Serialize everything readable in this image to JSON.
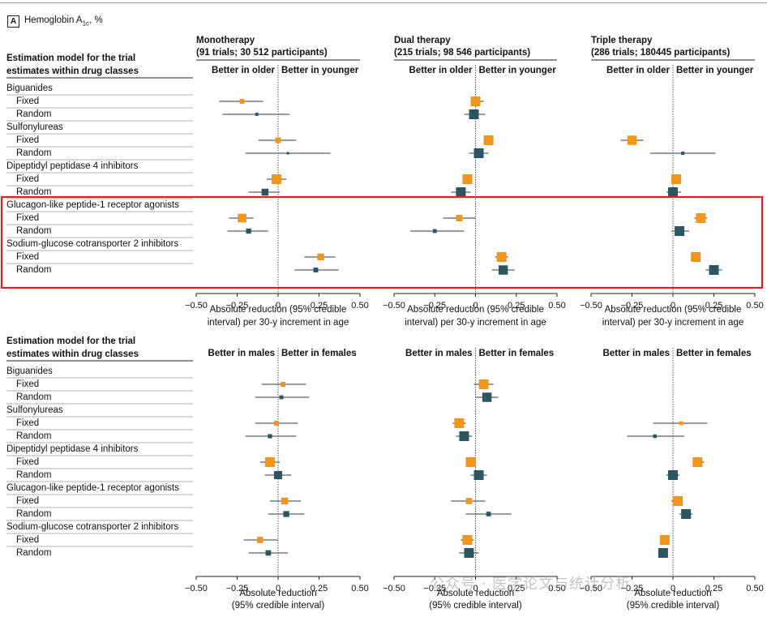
{
  "figure": {
    "panel_letter": "A",
    "panel_title": "Hemoglobin A",
    "panel_title_sub": "1c",
    "panel_title_suffix": ", %",
    "left_header_line1": "Estimation model for the trial",
    "left_header_line2": "estimates within drug classes",
    "watermark": "公众号 · 医学论文与统计分析",
    "colors": {
      "fixed": "#F0951E",
      "random": "#2B5560",
      "highlight": "#E8201C",
      "ci_line": "#2b3b45",
      "divider": "#9a9a9a"
    }
  },
  "chart_data": [
    {
      "type": "forest",
      "title": "Monotherapy",
      "subtitle": "(91 trials; 30 512 participants)",
      "label_left": "Better in older",
      "label_right": "Better in younger",
      "xlabel_line1": "Absolute reduction (95% credible",
      "xlabel_line2": "interval) per 30-y increment in age",
      "xlim": [
        -0.5,
        0.5
      ],
      "xticks": [
        "-0.50",
        "-0.25",
        "0",
        "0.25",
        "0.50"
      ],
      "groups": [
        {
          "name": "Biguanides",
          "fixed": {
            "est": -0.22,
            "lo": -0.36,
            "hi": -0.09
          },
          "random": {
            "est": -0.13,
            "lo": -0.34,
            "hi": 0.07
          }
        },
        {
          "name": "Sulfonylureas",
          "fixed": {
            "est": 0.0,
            "lo": -0.12,
            "hi": 0.11
          },
          "random": {
            "est": 0.06,
            "lo": -0.2,
            "hi": 0.32
          }
        },
        {
          "name": "Dipeptidyl peptidase 4 inhibitors",
          "fixed": {
            "est": -0.01,
            "lo": -0.07,
            "hi": 0.05
          },
          "random": {
            "est": -0.08,
            "lo": -0.18,
            "hi": 0.01
          }
        },
        {
          "name": "Glucagon-like peptide-1 receptor agonists",
          "fixed": {
            "est": -0.22,
            "lo": -0.3,
            "hi": -0.15
          },
          "random": {
            "est": -0.18,
            "lo": -0.31,
            "hi": -0.06
          }
        },
        {
          "name": "Sodium-glucose cotransporter 2 inhibitors",
          "fixed": {
            "est": 0.26,
            "lo": 0.16,
            "hi": 0.35
          },
          "random": {
            "est": 0.23,
            "lo": 0.1,
            "hi": 0.37
          }
        }
      ]
    },
    {
      "type": "forest",
      "title": "Dual therapy",
      "subtitle": "(215 trials; 98 546 participants)",
      "label_left": "Better in older",
      "label_right": "Better in younger",
      "xlabel_line1": "Absolute reduction (95% credible",
      "xlabel_line2": "interval) per 30-y increment in age",
      "xlim": [
        -0.5,
        0.5
      ],
      "xticks": [
        "-0.50",
        "-0.25",
        "0",
        "0.25",
        "0.50"
      ],
      "groups": [
        {
          "name": "Biguanides",
          "fixed": {
            "est": 0.0,
            "lo": -0.03,
            "hi": 0.05
          },
          "random": {
            "est": -0.01,
            "lo": -0.07,
            "hi": 0.06
          }
        },
        {
          "name": "Sulfonylureas",
          "fixed": {
            "est": 0.08,
            "lo": 0.05,
            "hi": 0.11
          },
          "random": {
            "est": 0.02,
            "lo": -0.04,
            "hi": 0.08
          }
        },
        {
          "name": "Dipeptidyl peptidase 4 inhibitors",
          "fixed": {
            "est": -0.05,
            "lo": -0.08,
            "hi": -0.02
          },
          "random": {
            "est": -0.09,
            "lo": -0.15,
            "hi": -0.03
          }
        },
        {
          "name": "Glucagon-like peptide-1 receptor agonists",
          "fixed": {
            "est": -0.1,
            "lo": -0.2,
            "hi": 0.0
          },
          "random": {
            "est": -0.25,
            "lo": -0.4,
            "hi": -0.07
          }
        },
        {
          "name": "Sodium-glucose cotransporter 2 inhibitors",
          "fixed": {
            "est": 0.16,
            "lo": 0.12,
            "hi": 0.2
          },
          "random": {
            "est": 0.17,
            "lo": 0.1,
            "hi": 0.24
          }
        }
      ]
    },
    {
      "type": "forest",
      "title": "Triple therapy",
      "subtitle": "(286 trials; 180445 participants)",
      "label_left": "Better in older",
      "label_right": "Better in younger",
      "xlabel_line1": "Absolute reduction (95% credible",
      "xlabel_line2": "interval) per 30-y increment in age",
      "xlim": [
        -0.5,
        0.5
      ],
      "xticks": [
        "-0.50",
        "-0.25",
        "0",
        "0.25",
        "0.50"
      ],
      "groups": [
        {
          "name": "Biguanides",
          "fixed": null,
          "random": null
        },
        {
          "name": "Sulfonylureas",
          "fixed": {
            "est": -0.25,
            "lo": -0.32,
            "hi": -0.18
          },
          "random": {
            "est": 0.06,
            "lo": -0.14,
            "hi": 0.26
          }
        },
        {
          "name": "Dipeptidyl peptidase 4 inhibitors",
          "fixed": {
            "est": 0.02,
            "lo": -0.01,
            "hi": 0.05
          },
          "random": {
            "est": 0.0,
            "lo": -0.04,
            "hi": 0.05
          }
        },
        {
          "name": "Glucagon-like peptide-1 receptor agonists",
          "fixed": {
            "est": 0.17,
            "lo": 0.13,
            "hi": 0.21
          },
          "random": {
            "est": 0.04,
            "lo": -0.01,
            "hi": 0.1
          }
        },
        {
          "name": "Sodium-glucose cotransporter 2 inhibitors",
          "fixed": {
            "est": 0.14,
            "lo": 0.11,
            "hi": 0.17
          },
          "random": {
            "est": 0.25,
            "lo": 0.2,
            "hi": 0.3
          }
        }
      ]
    },
    {
      "type": "forest",
      "title": "",
      "subtitle": "",
      "label_left": "Better in males",
      "label_right": "Better in females",
      "xlabel_line1": "Absolute reduction",
      "xlabel_line2": "(95% credible interval)",
      "xlim": [
        -0.5,
        0.5
      ],
      "xticks": [
        "-0.50",
        "-0.25",
        "0",
        "0.25",
        "0.50"
      ],
      "groups": [
        {
          "name": "Biguanides",
          "fixed": {
            "est": 0.03,
            "lo": -0.1,
            "hi": 0.17
          },
          "random": {
            "est": 0.02,
            "lo": -0.14,
            "hi": 0.19
          }
        },
        {
          "name": "Sulfonylureas",
          "fixed": {
            "est": -0.01,
            "lo": -0.14,
            "hi": 0.12
          },
          "random": {
            "est": -0.05,
            "lo": -0.2,
            "hi": 0.11
          }
        },
        {
          "name": "Dipeptidyl peptidase 4 inhibitors",
          "fixed": {
            "est": -0.05,
            "lo": -0.11,
            "hi": 0.01
          },
          "random": {
            "est": 0.0,
            "lo": -0.08,
            "hi": 0.08
          }
        },
        {
          "name": "Glucagon-like peptide-1 receptor agonists",
          "fixed": {
            "est": 0.04,
            "lo": -0.05,
            "hi": 0.14
          },
          "random": {
            "est": 0.05,
            "lo": -0.06,
            "hi": 0.16
          }
        },
        {
          "name": "Sodium-glucose cotransporter 2 inhibitors",
          "fixed": {
            "est": -0.11,
            "lo": -0.21,
            "hi": 0.0
          },
          "random": {
            "est": -0.06,
            "lo": -0.18,
            "hi": 0.06
          }
        }
      ]
    },
    {
      "type": "forest",
      "title": "",
      "subtitle": "",
      "label_left": "Better in males",
      "label_right": "Better in females",
      "xlabel_line1": "Absolute reduction",
      "xlabel_line2": "(95% credible interval)",
      "xlim": [
        -0.5,
        0.5
      ],
      "xticks": [
        "-0.50",
        "-0.25",
        "0",
        "0.25",
        "0.50"
      ],
      "groups": [
        {
          "name": "Biguanides",
          "fixed": {
            "est": 0.05,
            "lo": -0.01,
            "hi": 0.11
          },
          "random": {
            "est": 0.07,
            "lo": 0.0,
            "hi": 0.14
          }
        },
        {
          "name": "Sulfonylureas",
          "fixed": {
            "est": -0.1,
            "lo": -0.14,
            "hi": -0.06
          },
          "random": {
            "est": -0.07,
            "lo": -0.12,
            "hi": -0.02
          }
        },
        {
          "name": "Dipeptidyl peptidase 4 inhibitors",
          "fixed": {
            "est": -0.03,
            "lo": -0.06,
            "hi": 0.0
          },
          "random": {
            "est": 0.02,
            "lo": -0.03,
            "hi": 0.07
          }
        },
        {
          "name": "Glucagon-like peptide-1 receptor agonists",
          "fixed": {
            "est": -0.04,
            "lo": -0.15,
            "hi": 0.06
          },
          "random": {
            "est": 0.08,
            "lo": -0.06,
            "hi": 0.22
          }
        },
        {
          "name": "Sodium-glucose cotransporter 2 inhibitors",
          "fixed": {
            "est": -0.05,
            "lo": -0.09,
            "hi": -0.01
          },
          "random": {
            "est": -0.04,
            "lo": -0.1,
            "hi": 0.02
          }
        }
      ]
    },
    {
      "type": "forest",
      "title": "",
      "subtitle": "",
      "label_left": "Better in males",
      "label_right": "Better in females",
      "xlabel_line1": "Absolute reduction",
      "xlabel_line2": "(95% credible interval)",
      "xlim": [
        -0.5,
        0.5
      ],
      "xticks": [
        "-0.50",
        "-0.25",
        "0",
        "0.25",
        "0.50"
      ],
      "groups": [
        {
          "name": "Biguanides",
          "fixed": null,
          "random": null
        },
        {
          "name": "Sulfonylureas",
          "fixed": {
            "est": 0.05,
            "lo": -0.12,
            "hi": 0.21
          },
          "random": {
            "est": -0.11,
            "lo": -0.28,
            "hi": 0.07
          }
        },
        {
          "name": "Dipeptidyl peptidase 4 inhibitors",
          "fixed": {
            "est": 0.15,
            "lo": 0.12,
            "hi": 0.19
          },
          "random": {
            "est": 0.0,
            "lo": -0.04,
            "hi": 0.04
          }
        },
        {
          "name": "Glucagon-like peptide-1 receptor agonists",
          "fixed": {
            "est": 0.03,
            "lo": -0.01,
            "hi": 0.06
          },
          "random": {
            "est": 0.08,
            "lo": 0.04,
            "hi": 0.12
          }
        },
        {
          "name": "Sodium-glucose cotransporter 2 inhibitors",
          "fixed": {
            "est": -0.05,
            "lo": -0.08,
            "hi": -0.02
          },
          "random": {
            "est": -0.06,
            "lo": -0.09,
            "hi": -0.03
          }
        }
      ]
    }
  ],
  "row_labels": {
    "fixed": "Fixed",
    "random": "Random"
  }
}
